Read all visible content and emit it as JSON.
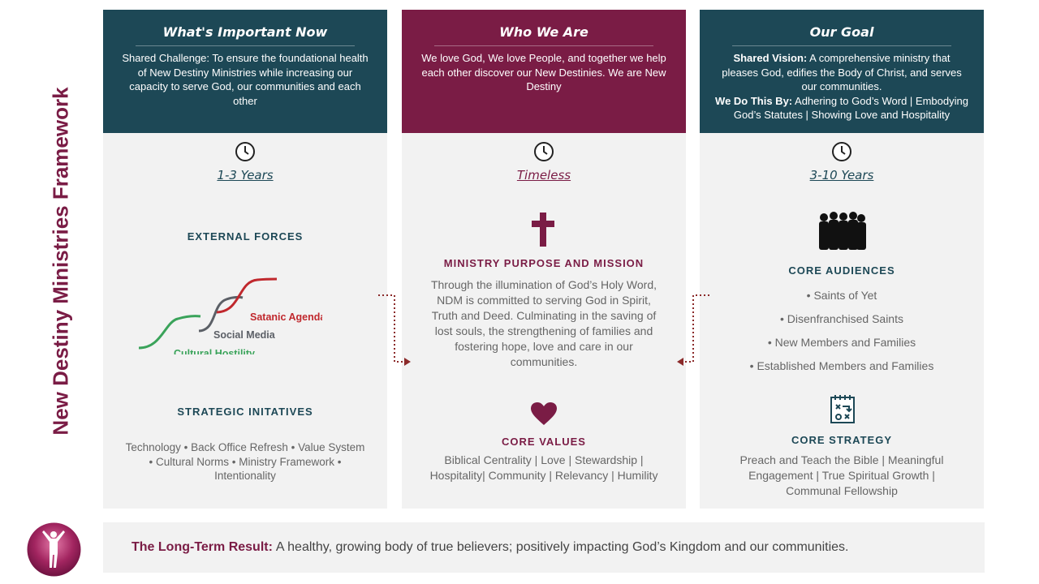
{
  "side_title": "New Destiny Ministries Framework",
  "columns": [
    {
      "title": "What's Important Now",
      "text": "Shared Challenge: To ensure the foundational health of New Destiny Ministries while increasing our capacity to serve God, our communities and each other",
      "period": "1-3 Years",
      "section1_title": "EXTERNAL FORCES",
      "forces": [
        "Satanic Agenda",
        "Social Media",
        "Cultural Hostility"
      ],
      "section2_title": "STRATEGIC INITATIVES",
      "section2_text": "Technology • Back Office Refresh • Value System • Cultural Norms • Ministry Framework  • Intentionality"
    },
    {
      "title": "Who We Are",
      "text": "We love God, We love People, and together we help each other discover our New Destinies. We are New Destiny",
      "period": "Timeless",
      "section1_title": "MINISTRY PURPOSE AND MISSION",
      "section1_text": "Through the illumination of God’s Holy Word, NDM is committed to serving God in Spirit, Truth and Deed. Culminating  in the saving of lost souls, the strengthening of families and fostering hope, love and care in our communities.",
      "section2_title": "CORE VALUES",
      "section2_text": "Biblical Centrality | Love | Stewardship | Hospitality| Community  | Relevancy | Humility"
    },
    {
      "title": "Our Goal",
      "vision_label": "Shared Vision:",
      "vision_text": " A comprehensive ministry that pleases God, edifies the Body of Christ, and serves our communities.",
      "do_label": "We Do This By:",
      "do_text": "  Adhering to God’s Word | Embodying God’s Statutes | Showing Love and Hospitality",
      "period": "3-10 Years",
      "section1_title": "CORE AUDIENCES",
      "audiences": [
        "• Saints of Yet",
        "• Disenfranchised Saints",
        "• New Members and Families",
        "• Established Members and Families"
      ],
      "section2_title": "CORE STRATEGY",
      "section2_text": "Preach and Teach the Bible | Meaningful Engagement | True Spiritual Growth  | Communal Fellowship"
    }
  ],
  "bottom": {
    "label": "The Long-Term Result:",
    "text": "A healthy, growing body of true believers; positively impacting God’s Kingdom and our communities."
  },
  "colors": {
    "teal": "#1d4856",
    "maroon": "#7a1c45",
    "panel": "#f2f2f2",
    "green": "#3aa35a",
    "red": "#c0282d",
    "gray": "#5b5f66"
  },
  "icons": [
    "clock-icon",
    "cross-icon",
    "heart-icon",
    "people-icon",
    "strategy-icon",
    "dotted-arrow-icon",
    "logo-icon"
  ]
}
